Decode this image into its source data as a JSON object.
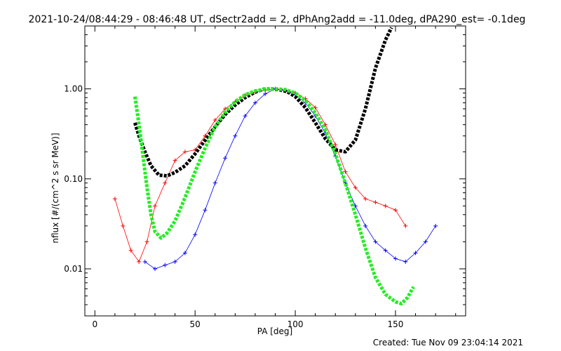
{
  "chart_data": {
    "type": "line",
    "title": "2021-10-24/08:44:29 - 08:46:48 UT, dSectr2add = 2, dPhAng2add = -11.0deg, dPA290_est= -0.1deg",
    "xlabel": "PA [deg]",
    "ylabel": "nflux [#/(cm^2 s sr MeV)]",
    "xlim": [
      -5,
      185
    ],
    "ylim": [
      0.003,
      5
    ],
    "yscale": "log",
    "xticks": [
      0,
      50,
      100,
      150
    ],
    "xtick_labels": [
      "0",
      "50",
      "100",
      "150"
    ],
    "yticks": [
      0.01,
      0.1,
      1.0
    ],
    "ytick_labels": [
      "0.01",
      "0.10",
      "1.00"
    ],
    "grid": false,
    "footer": "Created: Tue Nov 09 23:04:14 2021",
    "series": [
      {
        "role": "fit-black",
        "color": "#000000",
        "style": "thick-dashed",
        "x": [
          20,
          22,
          25,
          28,
          32,
          36,
          40,
          45,
          50,
          55,
          60,
          65,
          70,
          75,
          80,
          84,
          88,
          92,
          96,
          100,
          105,
          110,
          115,
          120,
          125,
          130,
          135,
          140,
          145,
          148
        ],
        "y": [
          0.42,
          0.3,
          0.2,
          0.14,
          0.11,
          0.108,
          0.118,
          0.14,
          0.19,
          0.27,
          0.38,
          0.52,
          0.66,
          0.8,
          0.92,
          0.99,
          1.0,
          0.98,
          0.93,
          0.82,
          0.62,
          0.42,
          0.28,
          0.21,
          0.2,
          0.27,
          0.6,
          1.7,
          3.5,
          4.8
        ]
      },
      {
        "role": "fit-green",
        "color": "#22ee22",
        "style": "thick-dashed",
        "x": [
          20,
          22,
          24,
          26,
          28,
          30,
          33,
          36,
          40,
          45,
          50,
          55,
          60,
          65,
          70,
          75,
          80,
          85,
          90,
          95,
          100,
          105,
          110,
          115,
          120,
          125,
          130,
          135,
          140,
          145,
          150,
          153,
          156,
          159
        ],
        "y": [
          0.82,
          0.4,
          0.18,
          0.08,
          0.04,
          0.026,
          0.022,
          0.025,
          0.034,
          0.062,
          0.12,
          0.22,
          0.38,
          0.55,
          0.72,
          0.86,
          0.95,
          0.99,
          1.0,
          0.98,
          0.9,
          0.74,
          0.54,
          0.35,
          0.19,
          0.09,
          0.04,
          0.017,
          0.008,
          0.0052,
          0.0043,
          0.0041,
          0.0048,
          0.0063
        ]
      },
      {
        "role": "data-red",
        "color": "#ff0000",
        "x": [
          10,
          14,
          18,
          22,
          26,
          30,
          35,
          40,
          45,
          50,
          55,
          60,
          65,
          70,
          75,
          80,
          85,
          90,
          95,
          100,
          105,
          110,
          115,
          120,
          125,
          130,
          135,
          140,
          145,
          150,
          155
        ],
        "y": [
          0.06,
          0.03,
          0.016,
          0.012,
          0.02,
          0.05,
          0.09,
          0.16,
          0.2,
          0.21,
          0.3,
          0.45,
          0.6,
          0.72,
          0.85,
          0.92,
          0.97,
          1.0,
          0.97,
          0.9,
          0.78,
          0.62,
          0.4,
          0.24,
          0.12,
          0.08,
          0.06,
          0.055,
          0.05,
          0.045,
          0.03
        ]
      },
      {
        "role": "data-blue",
        "color": "#0000ff",
        "x": [
          25,
          30,
          35,
          40,
          45,
          50,
          55,
          60,
          65,
          70,
          75,
          80,
          85,
          90,
          95,
          100,
          105,
          110,
          115,
          120,
          125,
          130,
          135,
          140,
          145,
          150,
          155,
          160,
          165,
          170
        ],
        "y": [
          0.012,
          0.01,
          0.011,
          0.012,
          0.015,
          0.024,
          0.045,
          0.09,
          0.17,
          0.3,
          0.5,
          0.7,
          0.88,
          1.0,
          0.95,
          0.86,
          0.7,
          0.5,
          0.32,
          0.18,
          0.09,
          0.05,
          0.03,
          0.02,
          0.016,
          0.013,
          0.012,
          0.015,
          0.02,
          0.03
        ]
      }
    ]
  }
}
